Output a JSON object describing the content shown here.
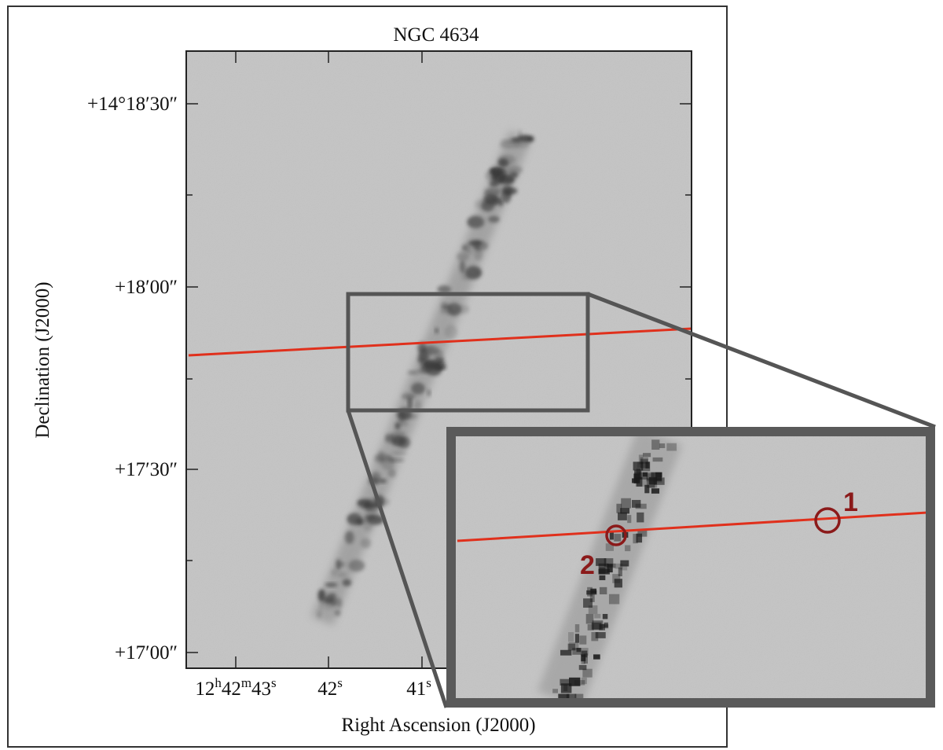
{
  "figure": {
    "title": "NGC 4634",
    "y_axis": {
      "label": "Declination (J2000)",
      "ticks": [
        "+14°18′30″",
        "+18′00″",
        "+17′30″",
        "+17′00″"
      ]
    },
    "x_axis": {
      "label": "Right Ascension (J2000)",
      "ticks": [
        [
          "12",
          "h",
          "42",
          "m",
          "43",
          "s"
        ],
        [
          "42",
          "s"
        ],
        [
          "41",
          "s"
        ]
      ]
    },
    "inset": {
      "markers": [
        {
          "label": "1"
        },
        {
          "label": "2"
        }
      ]
    }
  }
}
